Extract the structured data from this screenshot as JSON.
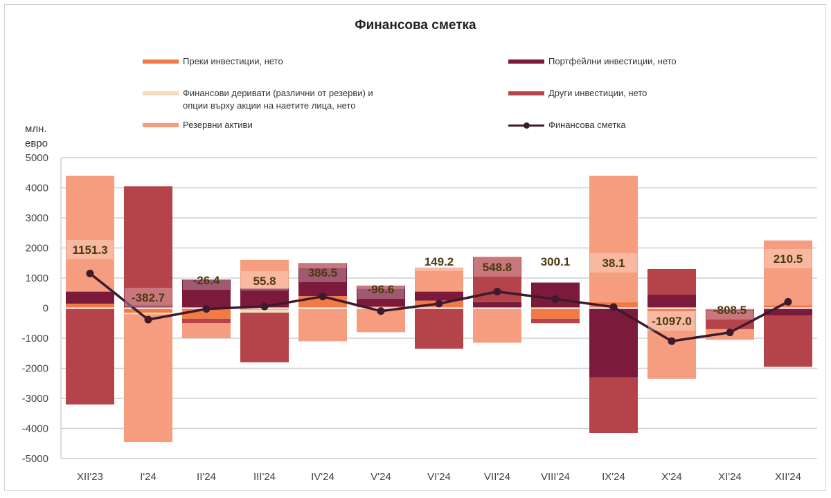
{
  "chart_data": {
    "type": "bar",
    "title": "Финансова  сметка",
    "ylabel": "млн. евро",
    "ylabel_lines": [
      "млн.",
      "евро"
    ],
    "xlabel": "",
    "ylim": [
      -5000,
      5000
    ],
    "yticks": [
      5000,
      4000,
      3000,
      2000,
      1000,
      0,
      -1000,
      -2000,
      -3000,
      -4000,
      -5000
    ],
    "grid": true,
    "stacked": true,
    "legend_position": "top",
    "categories": [
      "XII'23",
      "I'24",
      "II'24",
      "III'24",
      "IV'24",
      "V'24",
      "VI'24",
      "VII'24",
      "VIII'24",
      "IX'24",
      "X'24",
      "XI'24",
      "XII'24"
    ],
    "series": [
      {
        "name": "Преки инвестиции, нето",
        "color": "#f47a45",
        "values": [
          150,
          -150,
          -350,
          -50,
          400,
          50,
          250,
          0,
          -350,
          200,
          -100,
          -50,
          100
        ]
      },
      {
        "name": "Портфейлни инвестиции, нето",
        "color": "#7b1a3a",
        "values": [
          400,
          100,
          950,
          650,
          950,
          600,
          300,
          200,
          850,
          -2300,
          450,
          -50,
          -250
        ]
      },
      {
        "name": "Финансови деривати (различни от резерви) и опции върху акции на наетите лица, нето",
        "color": "#f5dcc0",
        "values": [
          0,
          -50,
          0,
          -100,
          0,
          0,
          0,
          0,
          0,
          0,
          0,
          0,
          0
        ]
      },
      {
        "name": "Други инвестиции, нето",
        "color": "#b5434a",
        "values": [
          -3200,
          3950,
          -150,
          -1650,
          150,
          100,
          -1350,
          1500,
          -150,
          -1850,
          850,
          -600,
          -1700
        ]
      },
      {
        "name": "Резервни активи",
        "color": "#f59d7e",
        "values": [
          3850,
          -4250,
          -500,
          950,
          -1100,
          -800,
          800,
          -1150,
          0,
          4200,
          -2250,
          -350,
          2150
        ]
      }
    ],
    "line_series": {
      "name": "Финансова сметка",
      "color": "#3d1a2e",
      "values": [
        1151.3,
        -382.7,
        -26.4,
        55.8,
        386.5,
        -96.6,
        149.2,
        548.8,
        300.1,
        38.1,
        -1097.0,
        -808.5,
        210.5
      ]
    },
    "data_labels": [
      "1151.3",
      "-382.7",
      "-26.4",
      "55.8",
      "386.5",
      "-96.6",
      "149.2",
      "548.8",
      "300.1",
      "38.1",
      "-1097.0",
      "-808.5",
      "210.5"
    ]
  },
  "legend": [
    {
      "label": "Преки инвестиции, нето",
      "color": "#f47a45"
    },
    {
      "label": "Портфейлни инвестиции, нето",
      "color": "#7b1a3a"
    },
    {
      "label_lines": [
        "Финансови деривати (различни от резерви) и",
        "опции върху акции на наетите лица, нето"
      ],
      "color": "#f5dcc0"
    },
    {
      "label": "Други инвестиции, нето",
      "color": "#b5434a"
    },
    {
      "label": "Резервни активи",
      "color": "#f59d7e"
    },
    {
      "label": "Финансова сметка",
      "color": "#3d1a2e"
    }
  ]
}
